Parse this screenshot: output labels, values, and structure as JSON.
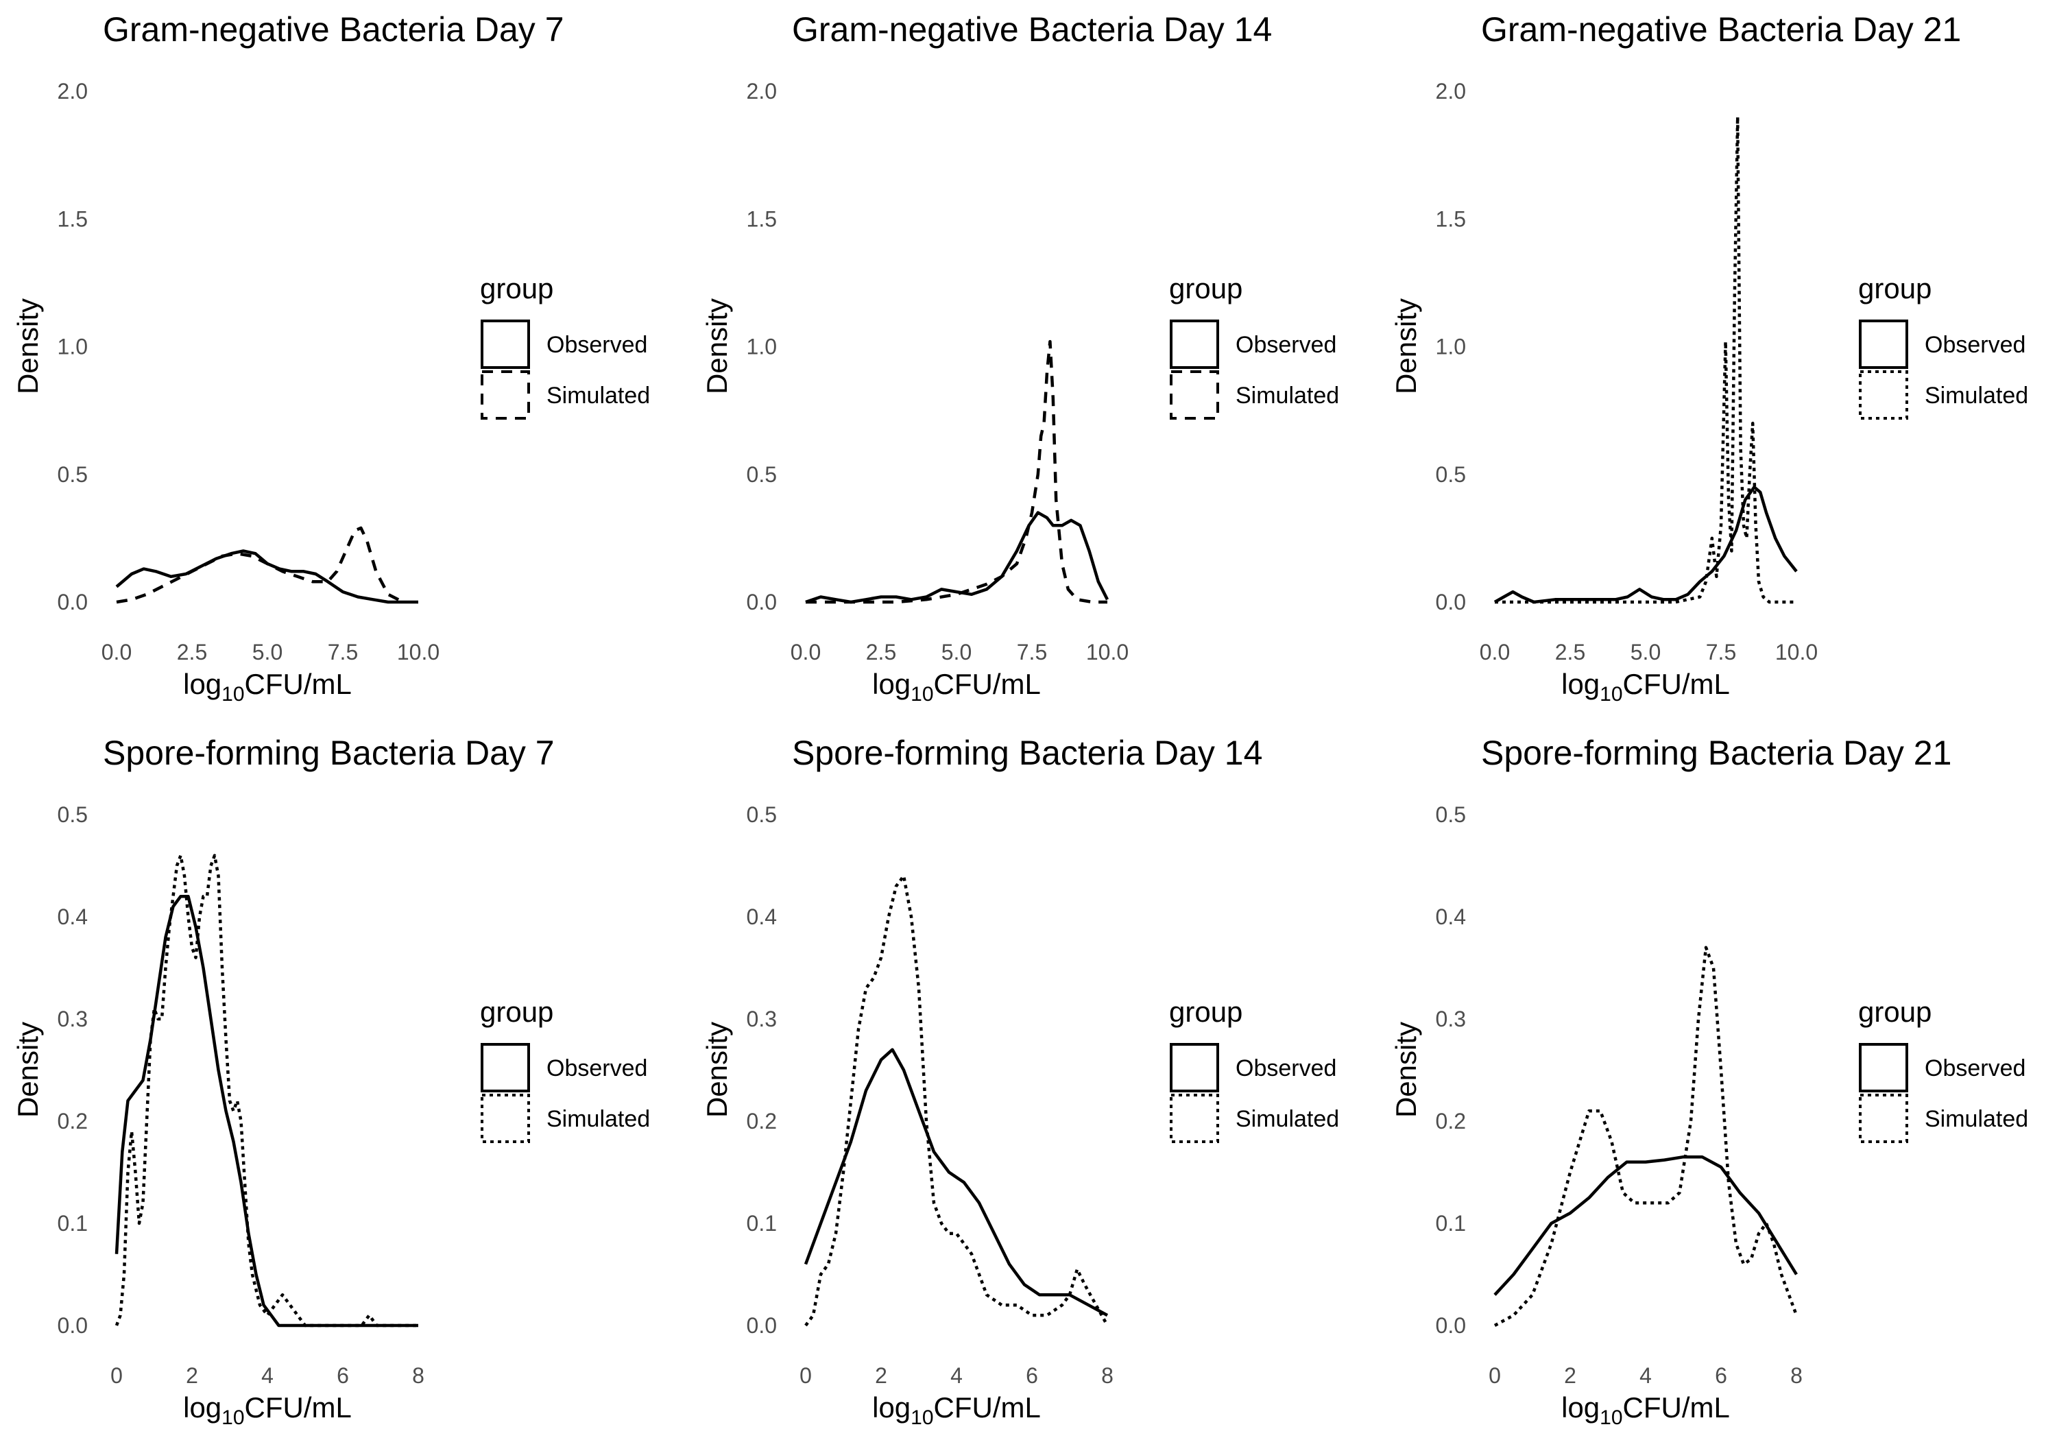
{
  "colors": {
    "line": "#000000",
    "tick_text": "#4d4d4d",
    "background": "#ffffff"
  },
  "chart_data": [
    {
      "type": "line",
      "title": "Gram-negative Bacteria Day 7",
      "xlabel_main": "log",
      "xlabel_sub": "10",
      "xlabel_unit": "CFU/mL",
      "ylabel": "Density",
      "xlim": [
        0,
        10
      ],
      "ylim": [
        0,
        2
      ],
      "x_ticks": [
        "0.0",
        "2.5",
        "5.0",
        "7.5",
        "10.0"
      ],
      "y_ticks": [
        "0.0",
        "0.5",
        "1.0",
        "1.5",
        "2.0"
      ],
      "legend_title": "group",
      "series": [
        {
          "name": "Observed",
          "dash": "solid",
          "x": [
            0.0,
            0.5,
            0.9,
            1.3,
            1.8,
            2.3,
            2.8,
            3.3,
            3.8,
            4.2,
            4.6,
            5.0,
            5.4,
            5.8,
            6.2,
            6.6,
            7.0,
            7.5,
            8.0,
            8.5,
            9.0,
            9.5,
            10.0
          ],
          "y": [
            0.06,
            0.11,
            0.13,
            0.12,
            0.1,
            0.11,
            0.14,
            0.17,
            0.19,
            0.2,
            0.19,
            0.15,
            0.13,
            0.12,
            0.12,
            0.11,
            0.08,
            0.04,
            0.02,
            0.01,
            0.0,
            0.0,
            0.0
          ]
        },
        {
          "name": "Simulated",
          "dash": "dashed",
          "x": [
            0.0,
            0.5,
            1.0,
            1.5,
            2.0,
            2.5,
            3.0,
            3.5,
            4.0,
            4.5,
            5.0,
            5.5,
            6.0,
            6.5,
            7.0,
            7.3,
            7.6,
            7.9,
            8.1,
            8.3,
            8.6,
            9.0,
            9.5
          ],
          "y": [
            0.0,
            0.01,
            0.03,
            0.06,
            0.09,
            0.12,
            0.15,
            0.18,
            0.19,
            0.18,
            0.15,
            0.12,
            0.1,
            0.08,
            0.08,
            0.12,
            0.2,
            0.28,
            0.29,
            0.24,
            0.12,
            0.03,
            0.0
          ]
        }
      ]
    },
    {
      "type": "line",
      "title": "Gram-negative Bacteria Day 14",
      "xlabel_main": "log",
      "xlabel_sub": "10",
      "xlabel_unit": "CFU/mL",
      "ylabel": "Density",
      "xlim": [
        0,
        10
      ],
      "ylim": [
        0,
        2
      ],
      "x_ticks": [
        "0.0",
        "2.5",
        "5.0",
        "7.5",
        "10.0"
      ],
      "y_ticks": [
        "0.0",
        "0.5",
        "1.0",
        "1.5",
        "2.0"
      ],
      "legend_title": "group",
      "series": [
        {
          "name": "Observed",
          "dash": "solid",
          "x": [
            0.0,
            0.5,
            1.0,
            1.5,
            2.0,
            2.5,
            3.0,
            3.5,
            4.0,
            4.5,
            5.0,
            5.5,
            6.0,
            6.5,
            7.0,
            7.4,
            7.7,
            8.0,
            8.2,
            8.5,
            8.8,
            9.1,
            9.4,
            9.7,
            10.0
          ],
          "y": [
            0.0,
            0.02,
            0.01,
            0.0,
            0.01,
            0.02,
            0.02,
            0.01,
            0.02,
            0.05,
            0.04,
            0.03,
            0.05,
            0.1,
            0.2,
            0.3,
            0.35,
            0.33,
            0.3,
            0.3,
            0.32,
            0.3,
            0.2,
            0.08,
            0.01
          ]
        },
        {
          "name": "Simulated",
          "dash": "dashed",
          "x": [
            0.0,
            1.0,
            2.0,
            3.0,
            4.0,
            5.0,
            5.5,
            6.0,
            6.5,
            7.0,
            7.3,
            7.5,
            7.7,
            7.8,
            7.9,
            8.0,
            8.1,
            8.2,
            8.3,
            8.5,
            8.7,
            9.0,
            9.5,
            10.0
          ],
          "y": [
            0.0,
            0.0,
            0.0,
            0.0,
            0.01,
            0.03,
            0.05,
            0.07,
            0.1,
            0.15,
            0.25,
            0.35,
            0.5,
            0.65,
            0.7,
            0.9,
            1.02,
            0.8,
            0.4,
            0.15,
            0.05,
            0.01,
            0.0,
            0.0
          ]
        }
      ]
    },
    {
      "type": "line",
      "title": "Gram-negative Bacteria Day 21",
      "xlabel_main": "log",
      "xlabel_sub": "10",
      "xlabel_unit": "CFU/mL",
      "ylabel": "Density",
      "xlim": [
        0,
        10
      ],
      "ylim": [
        0,
        2
      ],
      "x_ticks": [
        "0.0",
        "2.5",
        "5.0",
        "7.5",
        "10.0"
      ],
      "y_ticks": [
        "0.0",
        "0.5",
        "1.0",
        "1.5",
        "2.0"
      ],
      "legend_title": "group",
      "series": [
        {
          "name": "Observed",
          "dash": "solid",
          "x": [
            0.0,
            0.3,
            0.6,
            0.9,
            1.3,
            2.0,
            3.0,
            4.0,
            4.4,
            4.8,
            5.2,
            5.6,
            6.0,
            6.4,
            6.8,
            7.2,
            7.6,
            8.0,
            8.3,
            8.6,
            8.8,
            9.0,
            9.3,
            9.6,
            10.0
          ],
          "y": [
            0.0,
            0.02,
            0.04,
            0.02,
            0.0,
            0.01,
            0.01,
            0.01,
            0.02,
            0.05,
            0.02,
            0.01,
            0.01,
            0.03,
            0.08,
            0.12,
            0.18,
            0.28,
            0.4,
            0.45,
            0.43,
            0.35,
            0.25,
            0.18,
            0.12
          ]
        },
        {
          "name": "Simulated",
          "dash": "dotted",
          "x": [
            0.0,
            2.0,
            4.0,
            6.0,
            6.8,
            7.0,
            7.2,
            7.35,
            7.5,
            7.65,
            7.75,
            7.85,
            7.95,
            8.05,
            8.15,
            8.25,
            8.35,
            8.45,
            8.55,
            8.65,
            8.75,
            8.9,
            9.1,
            9.3,
            9.6,
            10.0
          ],
          "y": [
            0.0,
            0.0,
            0.0,
            0.0,
            0.02,
            0.08,
            0.25,
            0.1,
            0.3,
            1.02,
            0.4,
            0.2,
            1.2,
            1.9,
            0.6,
            0.3,
            0.25,
            0.5,
            0.7,
            0.3,
            0.08,
            0.02,
            0.0,
            0.0,
            0.0,
            0.0
          ]
        }
      ]
    },
    {
      "type": "line",
      "title": "Spore-forming Bacteria Day 7",
      "xlabel_main": "log",
      "xlabel_sub": "10",
      "xlabel_unit": "CFU/mL",
      "ylabel": "Density",
      "xlim": [
        0,
        8
      ],
      "ylim": [
        0,
        0.5
      ],
      "x_ticks": [
        "0",
        "2",
        "4",
        "6",
        "8"
      ],
      "y_ticks": [
        "0.0",
        "0.1",
        "0.2",
        "0.3",
        "0.4",
        "0.5"
      ],
      "legend_title": "group",
      "series": [
        {
          "name": "Observed",
          "dash": "solid",
          "x": [
            0.0,
            0.15,
            0.3,
            0.5,
            0.7,
            0.9,
            1.1,
            1.3,
            1.5,
            1.7,
            1.9,
            2.1,
            2.3,
            2.5,
            2.7,
            2.9,
            3.1,
            3.3,
            3.5,
            3.7,
            3.9,
            4.1,
            4.3,
            4.6,
            5.0,
            6.0,
            7.0,
            8.0
          ],
          "y": [
            0.07,
            0.17,
            0.22,
            0.23,
            0.24,
            0.28,
            0.33,
            0.38,
            0.41,
            0.42,
            0.42,
            0.39,
            0.35,
            0.3,
            0.25,
            0.21,
            0.18,
            0.14,
            0.09,
            0.05,
            0.02,
            0.01,
            0.0,
            0.0,
            0.0,
            0.0,
            0.0,
            0.0
          ]
        },
        {
          "name": "Simulated",
          "dash": "dotted",
          "x": [
            0.0,
            0.1,
            0.2,
            0.3,
            0.4,
            0.5,
            0.6,
            0.7,
            0.8,
            0.9,
            1.0,
            1.1,
            1.2,
            1.3,
            1.4,
            1.5,
            1.6,
            1.7,
            1.8,
            1.9,
            2.0,
            2.1,
            2.2,
            2.3,
            2.4,
            2.5,
            2.6,
            2.7,
            2.8,
            2.9,
            3.0,
            3.1,
            3.2,
            3.3,
            3.4,
            3.5,
            3.6,
            3.8,
            4.0,
            4.2,
            4.4,
            4.6,
            4.8,
            5.0,
            6.0,
            6.5,
            6.7,
            6.9,
            7.5,
            8.0
          ],
          "y": [
            0.0,
            0.01,
            0.05,
            0.15,
            0.19,
            0.15,
            0.1,
            0.12,
            0.2,
            0.28,
            0.31,
            0.3,
            0.3,
            0.35,
            0.39,
            0.42,
            0.45,
            0.46,
            0.44,
            0.4,
            0.37,
            0.36,
            0.4,
            0.42,
            0.42,
            0.45,
            0.46,
            0.44,
            0.35,
            0.28,
            0.22,
            0.21,
            0.22,
            0.2,
            0.14,
            0.08,
            0.05,
            0.02,
            0.01,
            0.02,
            0.03,
            0.02,
            0.01,
            0.0,
            0.0,
            0.0,
            0.01,
            0.0,
            0.0,
            0.0
          ]
        }
      ]
    },
    {
      "type": "line",
      "title": "Spore-forming Bacteria Day 14",
      "xlabel_main": "log",
      "xlabel_sub": "10",
      "xlabel_unit": "CFU/mL",
      "ylabel": "Density",
      "xlim": [
        0,
        8
      ],
      "ylim": [
        0,
        0.5
      ],
      "x_ticks": [
        "0",
        "2",
        "4",
        "6",
        "8"
      ],
      "y_ticks": [
        "0.0",
        "0.1",
        "0.2",
        "0.3",
        "0.4",
        "0.5"
      ],
      "legend_title": "group",
      "series": [
        {
          "name": "Observed",
          "dash": "solid",
          "x": [
            0.0,
            0.4,
            0.8,
            1.2,
            1.6,
            2.0,
            2.3,
            2.6,
            3.0,
            3.4,
            3.8,
            4.2,
            4.6,
            5.0,
            5.4,
            5.8,
            6.2,
            6.6,
            7.0,
            7.5,
            8.0
          ],
          "y": [
            0.06,
            0.1,
            0.14,
            0.18,
            0.23,
            0.26,
            0.27,
            0.25,
            0.21,
            0.17,
            0.15,
            0.14,
            0.12,
            0.09,
            0.06,
            0.04,
            0.03,
            0.03,
            0.03,
            0.02,
            0.01
          ]
        },
        {
          "name": "Simulated",
          "dash": "dotted",
          "x": [
            0.0,
            0.2,
            0.4,
            0.6,
            0.8,
            1.0,
            1.2,
            1.4,
            1.6,
            1.8,
            2.0,
            2.2,
            2.4,
            2.6,
            2.8,
            3.0,
            3.2,
            3.4,
            3.6,
            3.8,
            4.0,
            4.2,
            4.4,
            4.6,
            4.8,
            5.2,
            5.6,
            6.0,
            6.4,
            6.8,
            7.0,
            7.2,
            7.4,
            7.7,
            8.0
          ],
          "y": [
            0.0,
            0.01,
            0.05,
            0.06,
            0.09,
            0.15,
            0.22,
            0.29,
            0.33,
            0.34,
            0.36,
            0.4,
            0.43,
            0.44,
            0.4,
            0.33,
            0.2,
            0.12,
            0.1,
            0.09,
            0.09,
            0.08,
            0.07,
            0.05,
            0.03,
            0.02,
            0.02,
            0.01,
            0.01,
            0.02,
            0.03,
            0.055,
            0.04,
            0.02,
            0.0
          ]
        }
      ]
    },
    {
      "type": "line",
      "title": "Spore-forming Bacteria Day 21",
      "xlabel_main": "log",
      "xlabel_sub": "10",
      "xlabel_unit": "CFU/mL",
      "ylabel": "Density",
      "xlim": [
        0,
        8
      ],
      "ylim": [
        0,
        0.5
      ],
      "x_ticks": [
        "0",
        "2",
        "4",
        "6",
        "8"
      ],
      "y_ticks": [
        "0.0",
        "0.1",
        "0.2",
        "0.3",
        "0.4",
        "0.5"
      ],
      "legend_title": "group",
      "series": [
        {
          "name": "Observed",
          "dash": "solid",
          "x": [
            0.0,
            0.5,
            1.0,
            1.5,
            2.0,
            2.5,
            3.0,
            3.5,
            4.0,
            4.5,
            5.0,
            5.5,
            6.0,
            6.5,
            7.0,
            7.5,
            8.0
          ],
          "y": [
            0.03,
            0.05,
            0.075,
            0.1,
            0.11,
            0.125,
            0.145,
            0.16,
            0.16,
            0.162,
            0.165,
            0.165,
            0.155,
            0.13,
            0.11,
            0.08,
            0.05
          ]
        },
        {
          "name": "Simulated",
          "dash": "dotted",
          "x": [
            0.0,
            0.5,
            1.0,
            1.5,
            2.0,
            2.5,
            2.8,
            3.1,
            3.4,
            3.7,
            4.0,
            4.3,
            4.6,
            4.9,
            5.2,
            5.4,
            5.6,
            5.8,
            6.0,
            6.2,
            6.4,
            6.6,
            6.8,
            7.0,
            7.2,
            7.4,
            7.6,
            8.0
          ],
          "y": [
            0.0,
            0.01,
            0.03,
            0.08,
            0.15,
            0.21,
            0.21,
            0.18,
            0.13,
            0.12,
            0.12,
            0.12,
            0.12,
            0.13,
            0.2,
            0.3,
            0.37,
            0.35,
            0.25,
            0.14,
            0.08,
            0.06,
            0.065,
            0.09,
            0.1,
            0.08,
            0.05,
            0.01
          ]
        }
      ]
    }
  ]
}
